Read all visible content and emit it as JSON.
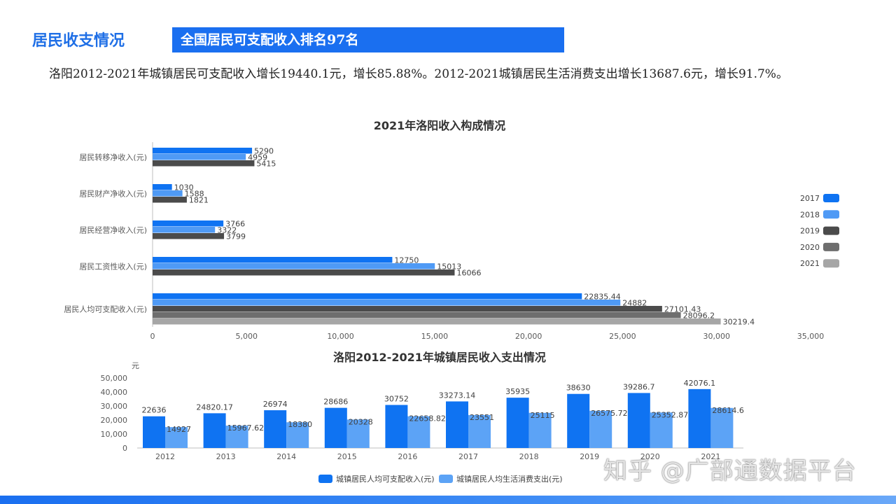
{
  "header": {
    "section_title": "居民收支情况",
    "banner_text": "全国居民可支配收入排名97名"
  },
  "intro_text": "洛阳2012-2021年城镇居民可支配收入增长19440.1元，增长85.88%。2012-2021城镇居民生活消费支出增长13687.6元，增长91.7%。",
  "watermark": "知乎 @广部通数据平台",
  "chart_data": [
    {
      "type": "bar",
      "orientation": "horizontal",
      "title": "2021年洛阳收入构成情况",
      "categories": [
        "居民转移净收入(元)",
        "居民财产净收入(元)",
        "居民经营净收入(元)",
        "居民工资性收入(元)",
        "居民人均可支配收入(元)"
      ],
      "series": [
        {
          "name": "2017",
          "color": "#0f73f2",
          "values": [
            5290,
            1030,
            3766,
            12750,
            22835.44
          ],
          "labels": [
            "5290",
            "1030",
            "3766",
            "12750",
            "22835.44"
          ]
        },
        {
          "name": "2018",
          "color": "#4f9af5",
          "values": [
            4959,
            1588,
            3322,
            15013,
            24882
          ],
          "labels": [
            "4959",
            "1588",
            "3322",
            "15013",
            "24882"
          ]
        },
        {
          "name": "2019",
          "color": "#4b4b4b",
          "values": [
            5415,
            1821,
            3799,
            16066,
            27101.43
          ],
          "labels": [
            "5415",
            "1821",
            "3799",
            "16066",
            "27101.43"
          ]
        },
        {
          "name": "2020",
          "color": "#6e6e6e",
          "values": [
            null,
            null,
            null,
            null,
            28096.2
          ],
          "labels": [
            "",
            "",
            "",
            "",
            "28096.2"
          ]
        },
        {
          "name": "2021",
          "color": "#a6a6a6",
          "values": [
            null,
            null,
            null,
            null,
            30219.4
          ],
          "labels": [
            "",
            "",
            "",
            "",
            "30219.4"
          ]
        }
      ],
      "xlim": [
        0,
        35000
      ],
      "xticks": [
        "0",
        "5,000",
        "10,000",
        "15,000",
        "20,000",
        "25,000",
        "30,000",
        "35,000"
      ],
      "legend_position": "right"
    },
    {
      "type": "bar",
      "title": "洛阳2012-2021年城镇居民收入支出情况",
      "ylabel": "元",
      "categories": [
        "2012",
        "2013",
        "2014",
        "2015",
        "2016",
        "2017",
        "2018",
        "2019",
        "2020",
        "2021"
      ],
      "series": [
        {
          "name": "城镇居民人均可支配收入(元)",
          "color": "#0f73f2",
          "values": [
            22636,
            24820.17,
            26974,
            28686,
            30752,
            33273.14,
            35935,
            38630,
            39286.7,
            42076.1
          ],
          "labels": [
            "22636",
            "24820.17",
            "26974",
            "28686",
            "30752",
            "33273.14",
            "35935",
            "38630",
            "39286.7",
            "42076.1"
          ]
        },
        {
          "name": "城镇居民人均生活消费支出(元)",
          "color": "#5ca3f6",
          "values": [
            14927,
            15967.62,
            18380,
            20328,
            22658.82,
            23551,
            25115,
            26575.72,
            25352.87,
            28614.6
          ],
          "labels": [
            "14927",
            "15967.62",
            "18380",
            "20328",
            "22658.82",
            "23551",
            "25115",
            "26575.72",
            "25352.87",
            "28614.6"
          ]
        }
      ],
      "ylim": [
        0,
        50000
      ],
      "yticks": [
        "0",
        "10,000",
        "20,000",
        "30,000",
        "40,000",
        "50,000"
      ],
      "legend_position": "bottom"
    }
  ]
}
